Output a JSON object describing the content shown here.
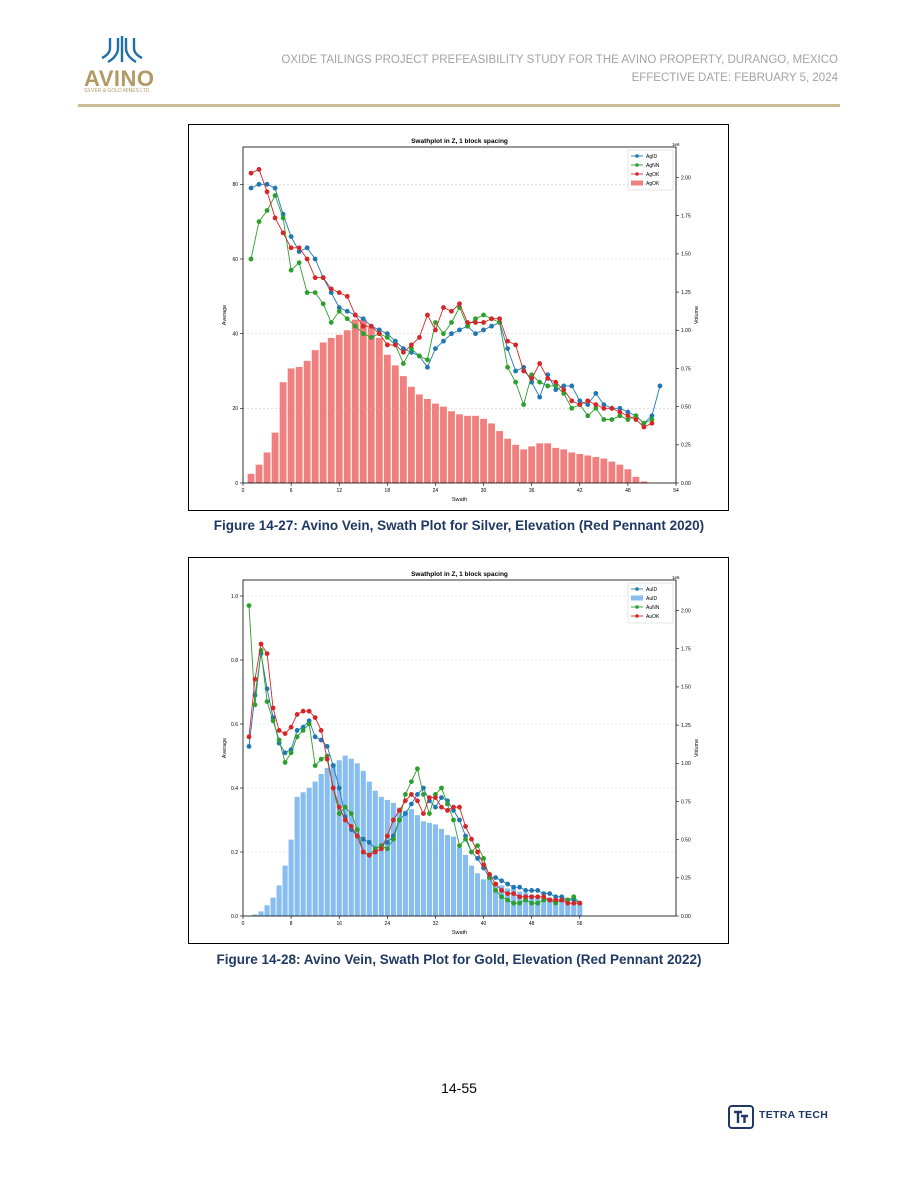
{
  "header": {
    "logo_text": "AVINO",
    "logo_subtext": "SILVER & GOLD MINES LTD.",
    "title_line1": "OXIDE TAILINGS PROJECT PREFEASIBILITY STUDY FOR THE AVINO PROPERTY, DURANGO, MEXICO",
    "title_line2": "EFFECTIVE DATE: FEBRUARY 5, 2024"
  },
  "colors": {
    "brand_gold": "#b29a64",
    "caption_blue": "#1f3864",
    "series_blue": "#1f77b4",
    "series_green": "#2ca02c",
    "series_red": "#d62728",
    "bar_red": "#f08080",
    "bar_blue": "#87bdf0"
  },
  "chart_data": [
    {
      "type": "bar+line",
      "title": "Swathplot in Z, 1 block spacing",
      "xlabel": "Swath",
      "ylabel": "Average",
      "y2label": "Volume",
      "y2_exponent": "1e6",
      "xlim": [
        0,
        54
      ],
      "ylim": [
        0,
        90
      ],
      "y2lim": [
        0,
        2.2
      ],
      "xticks": [
        0,
        6,
        12,
        18,
        24,
        30,
        36,
        42,
        48,
        54
      ],
      "yticks": [
        0,
        20,
        40,
        60,
        80
      ],
      "y2ticks": [
        0.0,
        0.25,
        0.5,
        0.75,
        1.0,
        1.25,
        1.5,
        1.75,
        2.0
      ],
      "grid": true,
      "legend_position": "top-right",
      "legend": [
        "AgID",
        "AgNN",
        "AgOK",
        "AgOK"
      ],
      "bars": {
        "name": "AgOK",
        "color": "#f08080",
        "x": [
          1,
          2,
          3,
          4,
          5,
          6,
          7,
          8,
          9,
          10,
          11,
          12,
          13,
          14,
          15,
          16,
          17,
          18,
          19,
          20,
          21,
          22,
          23,
          24,
          25,
          26,
          27,
          28,
          29,
          30,
          31,
          32,
          33,
          34,
          35,
          36,
          37,
          38,
          39,
          40,
          41,
          42,
          43,
          44,
          45,
          46,
          47,
          48,
          49,
          50
        ],
        "values": [
          0.06,
          0.12,
          0.2,
          0.33,
          0.66,
          0.75,
          0.76,
          0.8,
          0.87,
          0.92,
          0.95,
          0.97,
          1.0,
          1.07,
          1.07,
          1.02,
          0.95,
          0.84,
          0.77,
          0.7,
          0.63,
          0.58,
          0.55,
          0.52,
          0.5,
          0.47,
          0.45,
          0.44,
          0.44,
          0.42,
          0.39,
          0.34,
          0.29,
          0.25,
          0.22,
          0.24,
          0.26,
          0.26,
          0.23,
          0.22,
          0.2,
          0.19,
          0.18,
          0.17,
          0.16,
          0.14,
          0.12,
          0.09,
          0.04,
          0.01
        ]
      },
      "series": [
        {
          "name": "AgID",
          "color": "#1f77b4",
          "x": [
            1,
            2,
            3,
            4,
            5,
            6,
            7,
            8,
            9,
            10,
            11,
            12,
            13,
            14,
            15,
            16,
            17,
            18,
            19,
            20,
            21,
            22,
            23,
            24,
            25,
            26,
            27,
            28,
            29,
            30,
            31,
            32,
            33,
            34,
            35,
            36,
            37,
            38,
            39,
            40,
            41,
            42,
            43,
            44,
            45,
            46,
            47,
            48,
            49,
            50,
            51,
            52
          ],
          "values": [
            79,
            80,
            80,
            79,
            72,
            66,
            62,
            63,
            60,
            55,
            51,
            47,
            46,
            45,
            44,
            42,
            41,
            40,
            38,
            36,
            35,
            34,
            31,
            36,
            38,
            40,
            41,
            42,
            40,
            41,
            42,
            43,
            36,
            30,
            31,
            27,
            23,
            29,
            25,
            26,
            26,
            22,
            21,
            24,
            21,
            20,
            20,
            19,
            18,
            16,
            18,
            26
          ]
        },
        {
          "name": "AgNN",
          "color": "#2ca02c",
          "x": [
            1,
            2,
            3,
            4,
            5,
            6,
            7,
            8,
            9,
            10,
            11,
            12,
            13,
            14,
            15,
            16,
            17,
            18,
            19,
            20,
            21,
            22,
            23,
            24,
            25,
            26,
            27,
            28,
            29,
            30,
            31,
            32,
            33,
            34,
            35,
            36,
            37,
            38,
            39,
            40,
            41,
            42,
            43,
            44,
            45,
            46,
            47,
            48,
            49,
            50,
            51
          ],
          "values": [
            60,
            70,
            73,
            77,
            71,
            57,
            59,
            51,
            51,
            48,
            43,
            46,
            44,
            42,
            40,
            39,
            40,
            39,
            37,
            32,
            36,
            34,
            33,
            43,
            40,
            43,
            47,
            42,
            44,
            45,
            44,
            43,
            31,
            27,
            21,
            29,
            27,
            26,
            26,
            24,
            20,
            21,
            18,
            20,
            17,
            17,
            18,
            17,
            18,
            16,
            17
          ]
        },
        {
          "name": "AgOK",
          "color": "#d62728",
          "x": [
            1,
            2,
            3,
            4,
            5,
            6,
            7,
            8,
            9,
            10,
            11,
            12,
            13,
            14,
            15,
            16,
            17,
            18,
            19,
            20,
            21,
            22,
            23,
            24,
            25,
            26,
            27,
            28,
            29,
            30,
            31,
            32,
            33,
            34,
            35,
            36,
            37,
            38,
            39,
            40,
            41,
            42,
            43,
            44,
            45,
            46,
            47,
            48,
            49,
            50,
            51
          ],
          "values": [
            83,
            84,
            78,
            71,
            67,
            63,
            63,
            60,
            55,
            55,
            52,
            51,
            50,
            45,
            42,
            42,
            40,
            37,
            37,
            35,
            37,
            39,
            45,
            41,
            47,
            46,
            48,
            43,
            43,
            43,
            44,
            44,
            38,
            37,
            30,
            28,
            32,
            28,
            27,
            25,
            22,
            21,
            22,
            21,
            20,
            20,
            19,
            18,
            17,
            15,
            16
          ]
        }
      ]
    },
    {
      "type": "bar+line",
      "title": "Swathplot in Z, 1 block spacing",
      "xlabel": "Swath",
      "ylabel": "Average",
      "y2label": "Volume",
      "y2_exponent": "1e6",
      "xlim": [
        0,
        72
      ],
      "ylim": [
        0,
        1.05
      ],
      "y2lim": [
        0,
        2.2
      ],
      "xticks": [
        0,
        8,
        16,
        24,
        32,
        40,
        48,
        56
      ],
      "yticks": [
        0.0,
        0.2,
        0.4,
        0.6,
        0.8,
        1.0
      ],
      "y2ticks": [
        0.0,
        0.25,
        0.5,
        0.75,
        1.0,
        1.25,
        1.5,
        1.75,
        2.0
      ],
      "grid": true,
      "legend_position": "top-right",
      "legend": [
        "AuID",
        "AuID",
        "AuNN",
        "AuOK"
      ],
      "bars": {
        "name": "AuID",
        "color": "#87bdf0",
        "x": [
          2,
          3,
          4,
          5,
          6,
          7,
          8,
          9,
          10,
          11,
          12,
          13,
          14,
          15,
          16,
          17,
          18,
          19,
          20,
          21,
          22,
          23,
          24,
          25,
          26,
          27,
          28,
          29,
          30,
          31,
          32,
          33,
          34,
          35,
          36,
          37,
          38,
          39,
          40,
          41,
          42,
          43,
          44,
          45,
          46,
          47,
          48,
          49,
          50,
          51,
          52,
          53,
          54,
          55,
          56
        ],
        "values": [
          0.01,
          0.03,
          0.07,
          0.12,
          0.2,
          0.33,
          0.5,
          0.78,
          0.81,
          0.84,
          0.88,
          0.93,
          0.97,
          1.0,
          1.02,
          1.05,
          1.03,
          1.0,
          0.95,
          0.88,
          0.82,
          0.78,
          0.76,
          0.74,
          0.71,
          0.69,
          0.7,
          0.66,
          0.62,
          0.61,
          0.6,
          0.57,
          0.53,
          0.52,
          0.45,
          0.4,
          0.33,
          0.28,
          0.24,
          0.27,
          0.22,
          0.2,
          0.18,
          0.18,
          0.16,
          0.15,
          0.14,
          0.13,
          0.12,
          0.12,
          0.11,
          0.1,
          0.09,
          0.09,
          0.08
        ]
      },
      "series": [
        {
          "name": "AuID",
          "color": "#1f77b4",
          "x": [
            1,
            2,
            3,
            4,
            5,
            6,
            7,
            8,
            9,
            10,
            11,
            12,
            13,
            14,
            15,
            16,
            17,
            18,
            19,
            20,
            21,
            22,
            23,
            24,
            25,
            26,
            27,
            28,
            29,
            30,
            31,
            32,
            33,
            34,
            35,
            36,
            37,
            38,
            39,
            40,
            41,
            42,
            43,
            44,
            45,
            46,
            47,
            48,
            49,
            50,
            51,
            52,
            53,
            54,
            55,
            56
          ],
          "values": [
            0.53,
            0.69,
            0.82,
            0.71,
            0.62,
            0.54,
            0.51,
            0.52,
            0.58,
            0.59,
            0.61,
            0.56,
            0.55,
            0.53,
            0.47,
            0.4,
            0.31,
            0.27,
            0.25,
            0.24,
            0.23,
            0.21,
            0.22,
            0.23,
            0.25,
            0.3,
            0.32,
            0.35,
            0.38,
            0.4,
            0.36,
            0.34,
            0.37,
            0.36,
            0.33,
            0.3,
            0.25,
            0.2,
            0.18,
            0.15,
            0.12,
            0.12,
            0.11,
            0.1,
            0.09,
            0.09,
            0.08,
            0.08,
            0.08,
            0.07,
            0.07,
            0.06,
            0.06,
            0.05,
            0.05,
            0.04
          ]
        },
        {
          "name": "AuNN",
          "color": "#2ca02c",
          "x": [
            1,
            2,
            3,
            4,
            5,
            6,
            7,
            8,
            9,
            10,
            11,
            12,
            13,
            14,
            15,
            16,
            17,
            18,
            19,
            20,
            21,
            22,
            23,
            24,
            25,
            26,
            27,
            28,
            29,
            30,
            31,
            32,
            33,
            34,
            35,
            36,
            37,
            38,
            39,
            40,
            41,
            42,
            43,
            44,
            45,
            46,
            47,
            48,
            49,
            50,
            51,
            52,
            53,
            54,
            55,
            56
          ],
          "values": [
            0.97,
            0.66,
            0.83,
            0.67,
            0.61,
            0.55,
            0.48,
            0.51,
            0.56,
            0.58,
            0.6,
            0.47,
            0.49,
            0.5,
            0.4,
            0.32,
            0.34,
            0.32,
            0.27,
            0.2,
            0.19,
            0.21,
            0.22,
            0.21,
            0.24,
            0.3,
            0.38,
            0.42,
            0.46,
            0.38,
            0.32,
            0.38,
            0.4,
            0.35,
            0.3,
            0.22,
            0.24,
            0.2,
            0.22,
            0.18,
            0.12,
            0.08,
            0.06,
            0.05,
            0.04,
            0.04,
            0.05,
            0.04,
            0.04,
            0.05,
            0.05,
            0.04,
            0.05,
            0.05,
            0.06,
            0.04
          ]
        },
        {
          "name": "AuOK",
          "color": "#d62728",
          "x": [
            1,
            2,
            3,
            4,
            5,
            6,
            7,
            8,
            9,
            10,
            11,
            12,
            13,
            14,
            15,
            16,
            17,
            18,
            19,
            20,
            21,
            22,
            23,
            24,
            25,
            26,
            27,
            28,
            29,
            30,
            31,
            32,
            33,
            34,
            35,
            36,
            37,
            38,
            39,
            40,
            41,
            42,
            43,
            44,
            45,
            46,
            47,
            48,
            49,
            50,
            51,
            52,
            53,
            54,
            55,
            56
          ],
          "values": [
            0.56,
            0.74,
            0.85,
            0.82,
            0.65,
            0.58,
            0.57,
            0.59,
            0.63,
            0.64,
            0.64,
            0.62,
            0.58,
            0.49,
            0.4,
            0.34,
            0.3,
            0.28,
            0.25,
            0.2,
            0.19,
            0.2,
            0.21,
            0.25,
            0.3,
            0.33,
            0.36,
            0.38,
            0.36,
            0.32,
            0.37,
            0.37,
            0.34,
            0.33,
            0.34,
            0.34,
            0.28,
            0.24,
            0.2,
            0.16,
            0.13,
            0.1,
            0.08,
            0.07,
            0.07,
            0.06,
            0.06,
            0.06,
            0.06,
            0.06,
            0.05,
            0.05,
            0.05,
            0.04,
            0.04,
            0.04
          ]
        }
      ]
    }
  ],
  "captions": {
    "figure1": "Figure 14-27: Avino Vein, Swath Plot for Silver, Elevation (Red Pennant 2020)",
    "figure2": "Figure 14-28: Avino Vein, Swath Plot for Gold, Elevation (Red Pennant 2022)"
  },
  "footer": {
    "page_number": "14-55",
    "company": "TETRA TECH"
  }
}
